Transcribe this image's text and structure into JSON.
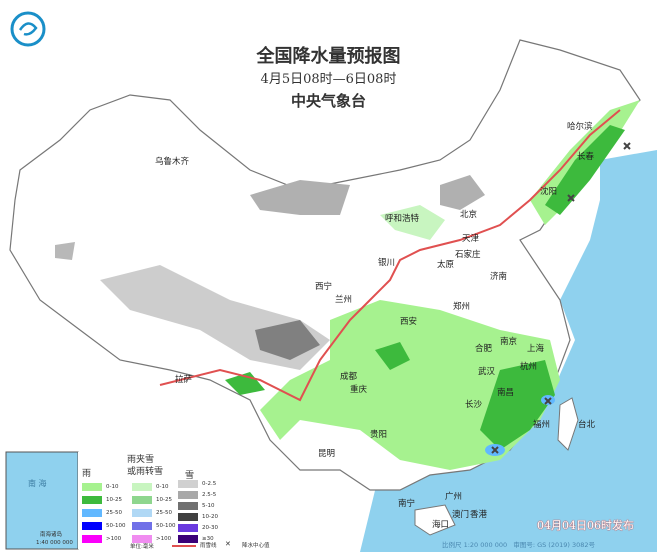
{
  "header": {
    "title": "全国降水量预报图",
    "period": "4月5日08时—6日08时",
    "agency": "中央气象台"
  },
  "logo": {
    "icon": "cma-logo-icon"
  },
  "cities": [
    {
      "name": "乌鲁木齐"
    },
    {
      "name": "哈尔滨"
    },
    {
      "name": "长春"
    },
    {
      "name": "沈阳"
    },
    {
      "name": "呼和浩特"
    },
    {
      "name": "北京"
    },
    {
      "name": "天津"
    },
    {
      "name": "太原"
    },
    {
      "name": "石家庄"
    },
    {
      "name": "银川"
    },
    {
      "name": "西宁"
    },
    {
      "name": "兰州"
    },
    {
      "name": "济南"
    },
    {
      "name": "郑州"
    },
    {
      "name": "西安"
    },
    {
      "name": "南京"
    },
    {
      "name": "合肥"
    },
    {
      "name": "上海"
    },
    {
      "name": "杭州"
    },
    {
      "name": "武汉"
    },
    {
      "name": "成都"
    },
    {
      "name": "重庆"
    },
    {
      "name": "长沙"
    },
    {
      "name": "南昌"
    },
    {
      "name": "福州"
    },
    {
      "name": "贵阳"
    },
    {
      "name": "拉萨"
    },
    {
      "name": "昆明"
    },
    {
      "name": "南宁"
    },
    {
      "name": "广州"
    },
    {
      "name": "澳门"
    },
    {
      "name": "香港"
    },
    {
      "name": "海口"
    },
    {
      "name": "台北"
    }
  ],
  "legend": {
    "rain": {
      "title": "雨",
      "items": [
        {
          "label": "0-10",
          "color": "#a6f28f"
        },
        {
          "label": "10-25",
          "color": "#3dba3d"
        },
        {
          "label": "25-50",
          "color": "#61b8ff"
        },
        {
          "label": "50-100",
          "color": "#0000fe"
        },
        {
          "label": ">100",
          "color": "#fa00fa"
        }
      ]
    },
    "sleet": {
      "title_line1": "雨夹雪",
      "title_line2": "或雨转雪",
      "items": [
        {
          "label": "0-10",
          "color": "#c8f5c0"
        },
        {
          "label": "10-25",
          "color": "#8ed68e"
        },
        {
          "label": "25-50",
          "color": "#b0d8f5"
        },
        {
          "label": "50-100",
          "color": "#7070e8"
        },
        {
          "label": ">100",
          "color": "#f08cf0"
        }
      ]
    },
    "snow": {
      "title": "雪",
      "items": [
        {
          "label": "0-2.5",
          "color": "#d0d0d0"
        },
        {
          "label": "2.5-5",
          "color": "#a8a8a8"
        },
        {
          "label": "5-10",
          "color": "#707070"
        },
        {
          "label": "10-20",
          "color": "#404040"
        },
        {
          "label": "20-30",
          "color": "#6a3adf"
        },
        {
          "label": "≥30",
          "color": "#3a0078"
        }
      ]
    },
    "unit": "单位:毫米",
    "rain_snow_line": "雨雪线",
    "center": "降水中心值"
  },
  "inset": {
    "sea": "南 海",
    "islands": "南海诸岛",
    "scale": "1:40 000 000"
  },
  "footer": {
    "published": "04月04日06时发布",
    "scale": "比例尺 1:20 000 000",
    "approval": "审图号: GS (2019) 3082号"
  },
  "colors": {
    "sea": "#8fd1ee",
    "land": "#ffffff",
    "border": "#777777",
    "rain_light": "#a6f28f",
    "rain_mod": "#3dba3d",
    "snow_light": "#c8c8c8",
    "line": "#e05050"
  }
}
